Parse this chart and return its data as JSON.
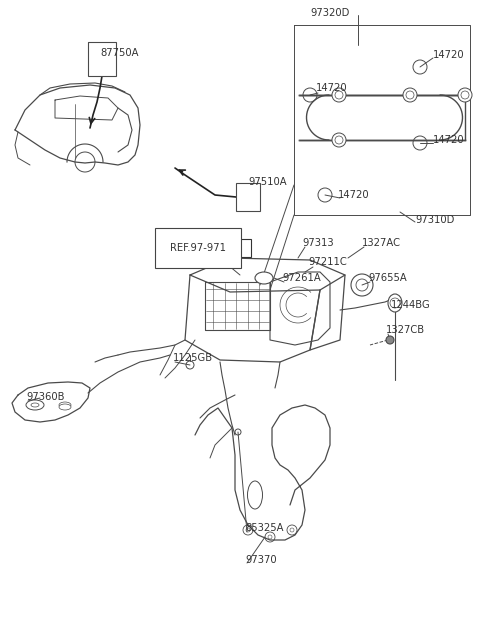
{
  "bg_color": "#ffffff",
  "lc": "#4a4a4a",
  "lw": 0.8,
  "figsize": [
    4.8,
    6.29
  ],
  "dpi": 100,
  "labels": {
    "87750A": [
      100,
      58,
      "left"
    ],
    "97510A": [
      248,
      185,
      "left"
    ],
    "REF.97-971": [
      175,
      248,
      "left"
    ],
    "97320D": [
      358,
      12,
      "center"
    ],
    "14720_tr": [
      433,
      55,
      "left"
    ],
    "14720_tl": [
      318,
      88,
      "left"
    ],
    "14720_mr": [
      433,
      140,
      "left"
    ],
    "14720_b": [
      340,
      195,
      "left"
    ],
    "97310D": [
      415,
      218,
      "left"
    ],
    "97313": [
      300,
      243,
      "left"
    ],
    "1327AC": [
      364,
      243,
      "left"
    ],
    "97211C": [
      308,
      262,
      "left"
    ],
    "97261A": [
      284,
      278,
      "left"
    ],
    "97655A": [
      370,
      278,
      "left"
    ],
    "1244BG": [
      393,
      305,
      "left"
    ],
    "1327CB": [
      388,
      330,
      "left"
    ],
    "1125GB": [
      175,
      358,
      "left"
    ],
    "97360B": [
      28,
      398,
      "left"
    ],
    "85325A": [
      247,
      528,
      "left"
    ],
    "97370": [
      247,
      560,
      "left"
    ]
  }
}
